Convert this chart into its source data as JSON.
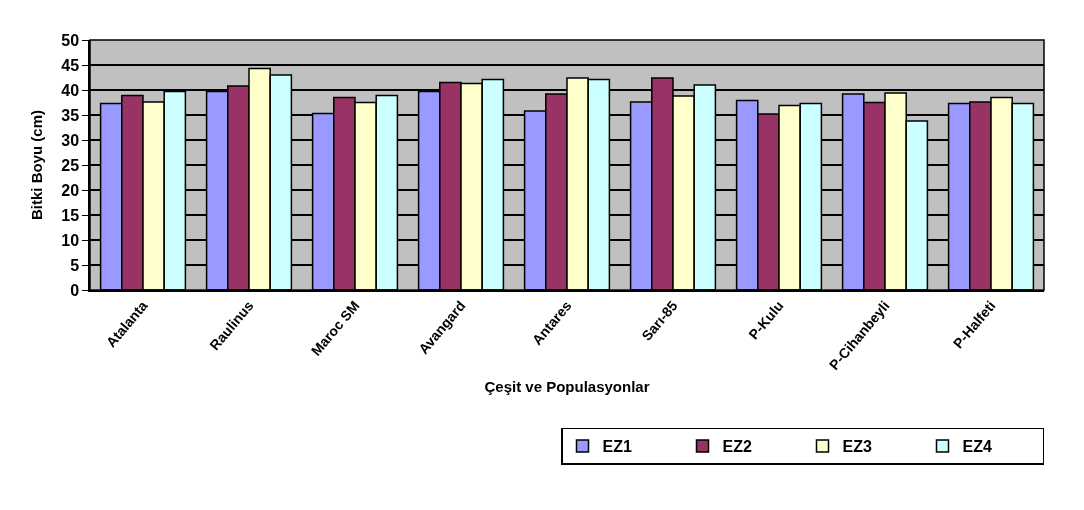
{
  "chart_data": {
    "type": "bar",
    "xlabel": "Çeşit ve Populasyonlar",
    "ylabel": "Bitki Boyu (cm)",
    "categories": [
      "Atalanta",
      "Raulinus",
      "Maroc SM",
      "Avangard",
      "Antares",
      "Sarı-85",
      "P-Kulu",
      "P-Cihanbeyli",
      "P-Halfeti"
    ],
    "series": [
      {
        "name": "EZ1",
        "color": "#9999ff",
        "values": [
          37.3,
          39.7,
          35.3,
          39.7,
          35.8,
          37.6,
          37.9,
          39.2,
          37.3
        ]
      },
      {
        "name": "EZ2",
        "color": "#993366",
        "values": [
          38.9,
          40.8,
          38.5,
          41.5,
          39.2,
          42.4,
          35.2,
          37.5,
          37.6
        ]
      },
      {
        "name": "EZ3",
        "color": "#ffffcc",
        "values": [
          37.6,
          44.3,
          37.5,
          41.3,
          42.4,
          38.8,
          36.9,
          39.4,
          38.5
        ]
      },
      {
        "name": "EZ4",
        "color": "#ccffff",
        "values": [
          39.7,
          43.0,
          38.9,
          42.1,
          42.1,
          41.0,
          37.3,
          33.8,
          37.3
        ]
      }
    ],
    "ylim": [
      0,
      50
    ],
    "yticks": [
      0,
      5,
      10,
      15,
      20,
      25,
      30,
      35,
      40,
      45,
      50
    ],
    "grid": "y",
    "legend": "bottom right"
  }
}
